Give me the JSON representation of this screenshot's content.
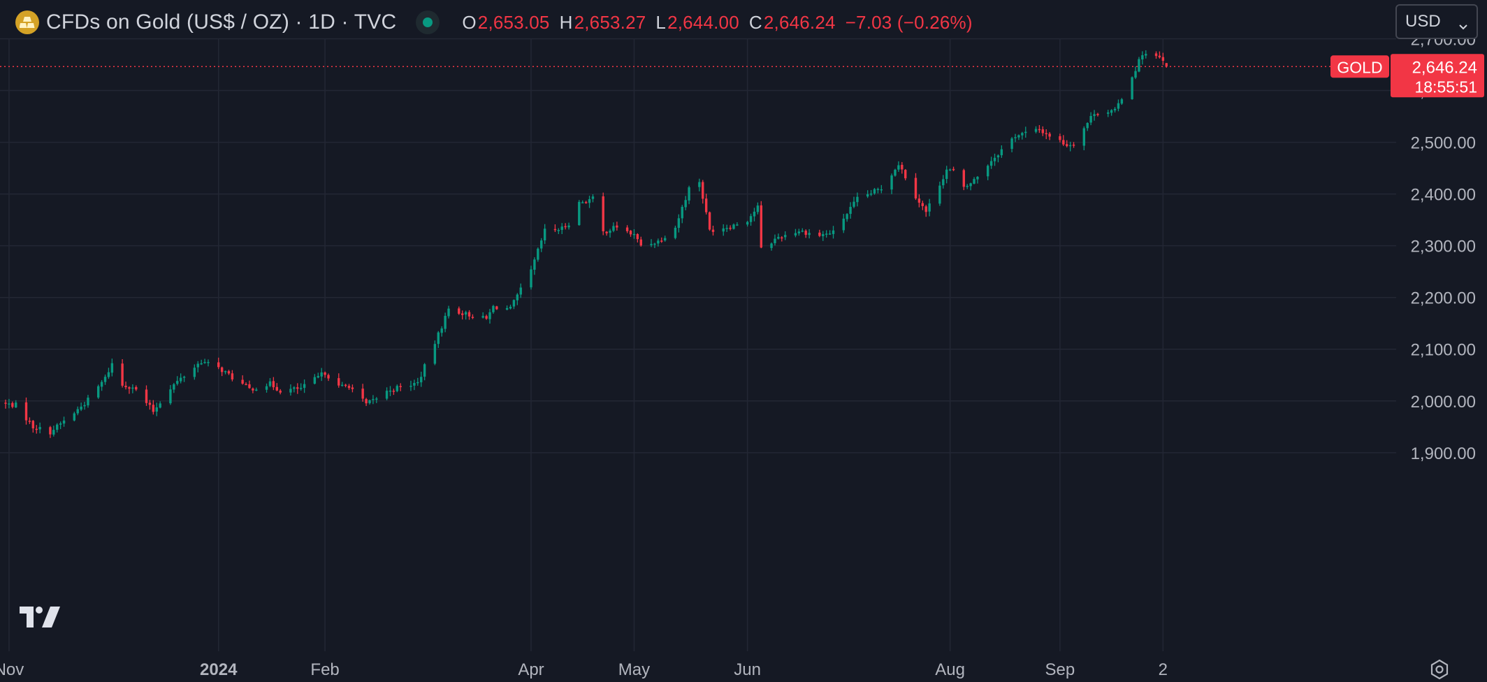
{
  "header": {
    "symbol_title": "CFDs on Gold (US$ / OZ) · 1D · TVC",
    "open_key": "O",
    "open_value": "2,653.05",
    "high_key": "H",
    "high_value": "2,653.27",
    "low_key": "L",
    "low_value": "2,644.00",
    "close_key": "C",
    "close_value": "2,646.24",
    "change": "−7.03 (−0.26%)"
  },
  "currency_select": {
    "value": "USD"
  },
  "price_tag": {
    "label": "GOLD",
    "price": "2,646.24",
    "countdown": "18:55:51"
  },
  "colors": {
    "background": "#151924",
    "grid": "#232734",
    "up": "#089981",
    "down": "#f23645",
    "axis_text": "#b2b5be"
  },
  "icons": {
    "symbol_logo": "gold-bars-icon",
    "live_status": "live-dot-icon",
    "currency_chevron": "chevron-down-icon",
    "brand": "tradingview-logo-icon",
    "settings": "settings-icon"
  },
  "chart_data": {
    "type": "candlestick",
    "title": "CFDs on Gold (US$ / OZ) · 1D · TVC",
    "ylim": [
      1850,
      2720
    ],
    "y_ticks": [
      "1,900.00",
      "2,000.00",
      "2,100.00",
      "2,200.00",
      "2,300.00",
      "2,400.00",
      "2,500.00",
      "2,600.00",
      "2,700.00"
    ],
    "x_ticks": [
      "Nov",
      "2024",
      "Feb",
      "Apr",
      "May",
      "Jun",
      "Aug",
      "Sep",
      "2"
    ],
    "grid": true,
    "last_price": 2646.24,
    "anchors": [
      [
        "2023-10-31",
        1994
      ],
      [
        "2023-11-03",
        1992
      ],
      [
        "2023-11-08",
        1950
      ],
      [
        "2023-11-13",
        1940
      ],
      [
        "2023-11-20",
        1977
      ],
      [
        "2023-11-24",
        2002
      ],
      [
        "2023-11-29",
        2044
      ],
      [
        "2023-12-01",
        2072
      ],
      [
        "2023-12-04",
        2030
      ],
      [
        "2023-12-07",
        2028
      ],
      [
        "2023-12-13",
        1980
      ],
      [
        "2023-12-18",
        2026
      ],
      [
        "2023-12-27",
        2077
      ],
      [
        "2024-01-02",
        2060
      ],
      [
        "2024-01-05",
        2045
      ],
      [
        "2024-01-10",
        2023
      ],
      [
        "2024-01-16",
        2033
      ],
      [
        "2024-01-19",
        2020
      ],
      [
        "2024-01-25",
        2024
      ],
      [
        "2024-02-01",
        2055
      ],
      [
        "2024-02-05",
        2027
      ],
      [
        "2024-02-08",
        2030
      ],
      [
        "2024-02-13",
        1993
      ],
      [
        "2024-02-20",
        2022
      ],
      [
        "2024-02-28",
        2035
      ],
      [
        "2024-03-05",
        2128
      ],
      [
        "2024-03-08",
        2178
      ],
      [
        "2024-03-13",
        2168
      ],
      [
        "2024-03-19",
        2158
      ],
      [
        "2024-03-21",
        2182
      ],
      [
        "2024-03-26",
        2178
      ],
      [
        "2024-04-01",
        2251
      ],
      [
        "2024-04-05",
        2329
      ],
      [
        "2024-04-10",
        2333
      ],
      [
        "2024-04-12",
        2344
      ],
      [
        "2024-04-15",
        2383
      ],
      [
        "2024-04-19",
        2391
      ],
      [
        "2024-04-22",
        2326
      ],
      [
        "2024-04-26",
        2337
      ],
      [
        "2024-05-01",
        2320
      ],
      [
        "2024-05-03",
        2301
      ],
      [
        "2024-05-08",
        2309
      ],
      [
        "2024-05-13",
        2336
      ],
      [
        "2024-05-17",
        2411
      ],
      [
        "2024-05-20",
        2425
      ],
      [
        "2024-05-23",
        2330
      ],
      [
        "2024-05-29",
        2338
      ],
      [
        "2024-06-03",
        2350
      ],
      [
        "2024-06-06",
        2375
      ],
      [
        "2024-06-07",
        2293
      ],
      [
        "2024-06-12",
        2317
      ],
      [
        "2024-06-18",
        2329
      ],
      [
        "2024-06-24",
        2320
      ],
      [
        "2024-06-28",
        2326
      ],
      [
        "2024-07-05",
        2390
      ],
      [
        "2024-07-12",
        2411
      ],
      [
        "2024-07-17",
        2459
      ],
      [
        "2024-07-22",
        2396
      ],
      [
        "2024-07-25",
        2365
      ],
      [
        "2024-07-31",
        2447
      ],
      [
        "2024-08-02",
        2444
      ],
      [
        "2024-08-05",
        2410
      ],
      [
        "2024-08-08",
        2427
      ],
      [
        "2024-08-13",
        2465
      ],
      [
        "2024-08-20",
        2513
      ],
      [
        "2024-08-27",
        2524
      ],
      [
        "2024-09-04",
        2495
      ],
      [
        "2024-09-06",
        2498
      ],
      [
        "2024-09-12",
        2558
      ],
      [
        "2024-09-18",
        2560
      ],
      [
        "2024-09-23",
        2627
      ],
      [
        "2024-09-26",
        2672
      ],
      [
        "2024-10-01",
        2662
      ],
      [
        "2024-10-02",
        2656
      ]
    ],
    "final_candle": {
      "date": "2024-10-03",
      "open": 2653.05,
      "high": 2653.27,
      "low": 2644.0,
      "close": 2646.24
    }
  }
}
